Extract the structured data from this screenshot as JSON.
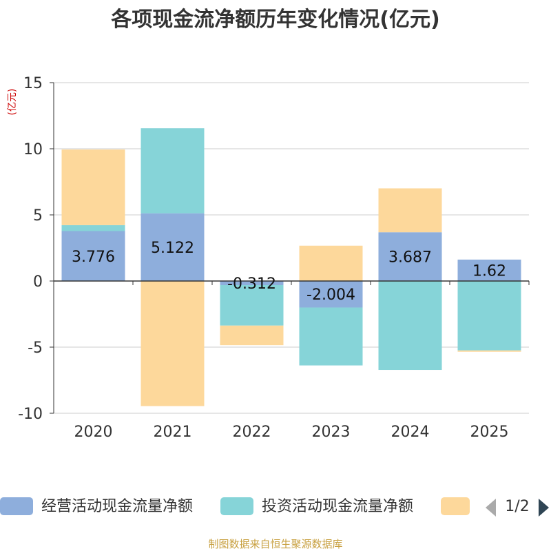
{
  "chart_data": {
    "type": "bar",
    "stacked": true,
    "title": "各项现金流净额历年变化情况(亿元)",
    "ylabel": "(亿元)",
    "xlabel": "",
    "ylim": [
      -10,
      15
    ],
    "yticks": [
      -10,
      -5,
      0,
      5,
      10,
      15
    ],
    "categories": [
      "2020",
      "2021",
      "2022",
      "2023",
      "2024",
      "2025"
    ],
    "series": [
      {
        "name": "经营活动现金流量净额",
        "color": "#8eaedc",
        "values": [
          3.776,
          5.122,
          -0.312,
          -2.004,
          3.687,
          1.62
        ],
        "labels": [
          "3.776",
          "5.122",
          "-0.312",
          "-2.004",
          "3.687",
          "1.62"
        ]
      },
      {
        "name": "投资活动现金流量净额",
        "color": "#86d4d8",
        "values": [
          0.45,
          6.43,
          -3.06,
          -4.38,
          -6.72,
          -5.25
        ]
      },
      {
        "name": "",
        "color": "#fdd89b",
        "values": [
          5.72,
          -9.46,
          -1.48,
          2.67,
          3.32,
          -0.1
        ]
      }
    ],
    "legend": {
      "position": "bottom",
      "page": "1/2"
    },
    "source": "制图数据来自恒生聚源数据库"
  }
}
